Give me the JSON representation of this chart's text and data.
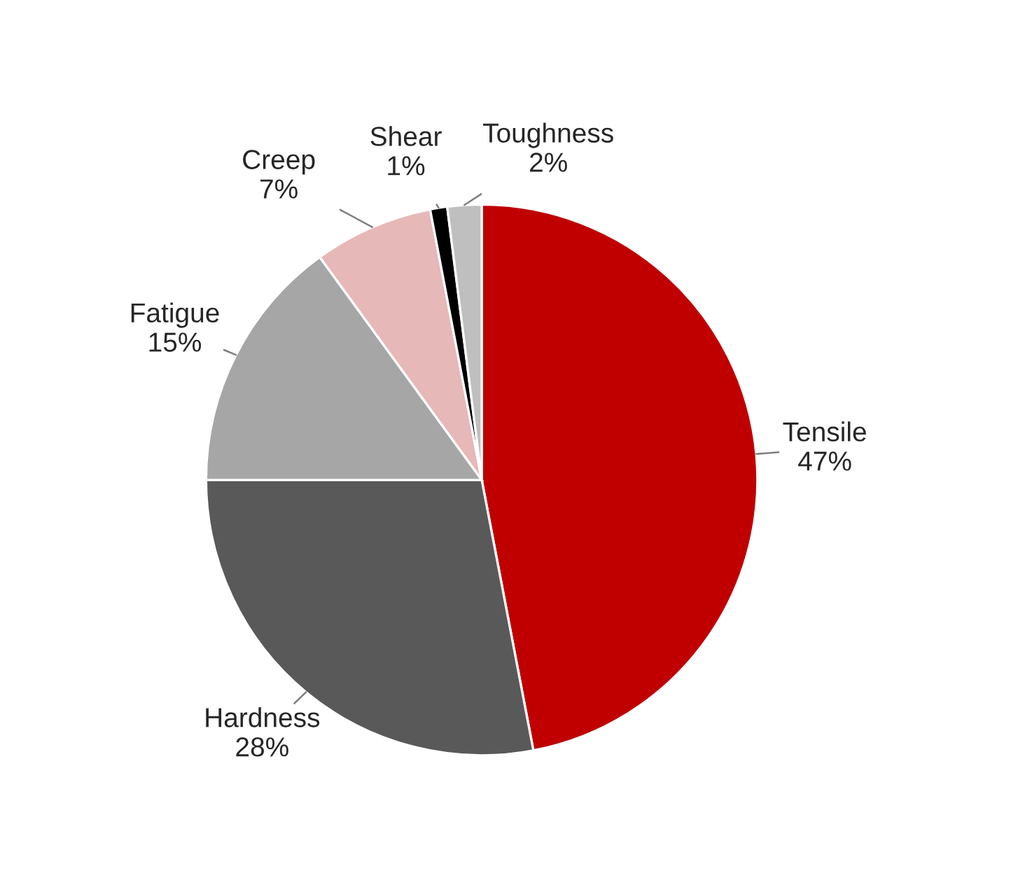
{
  "chart_data": {
    "type": "pie",
    "categories": [
      "Tensile",
      "Hardness",
      "Fatigue",
      "Creep",
      "Shear",
      "Toughness"
    ],
    "values": [
      47,
      28,
      15,
      7,
      1,
      2
    ],
    "value_labels": [
      "47%",
      "28%",
      "15%",
      "7%",
      "1%",
      "2%"
    ],
    "colors": [
      "#c00000",
      "#595959",
      "#a6a6a6",
      "#e6b8b7",
      "#000000",
      "#bfbfbf"
    ],
    "legend": false
  }
}
